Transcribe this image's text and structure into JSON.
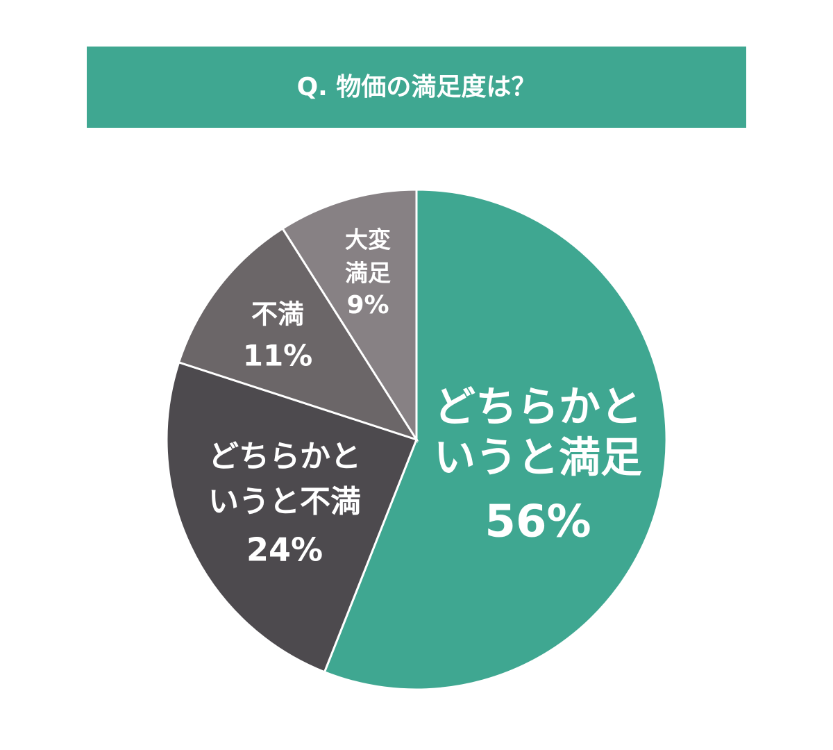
{
  "chart_data": {
    "type": "pie",
    "title": "Q. 物価の満足度は？",
    "categories": [
      [
        "どちらかと",
        "いうと満足"
      ],
      [
        "どちらかと",
        "いうと不満"
      ],
      [
        "不満"
      ],
      [
        "大変",
        "満足"
      ]
    ],
    "values": [
      56,
      24,
      11,
      9
    ],
    "value_labels": [
      "56%",
      "24%",
      "11%",
      "9%"
    ],
    "colors": [
      "#3fa791",
      "#4d4a4e",
      "#6b6668",
      "#878184"
    ],
    "title_color": "#3fa791"
  }
}
